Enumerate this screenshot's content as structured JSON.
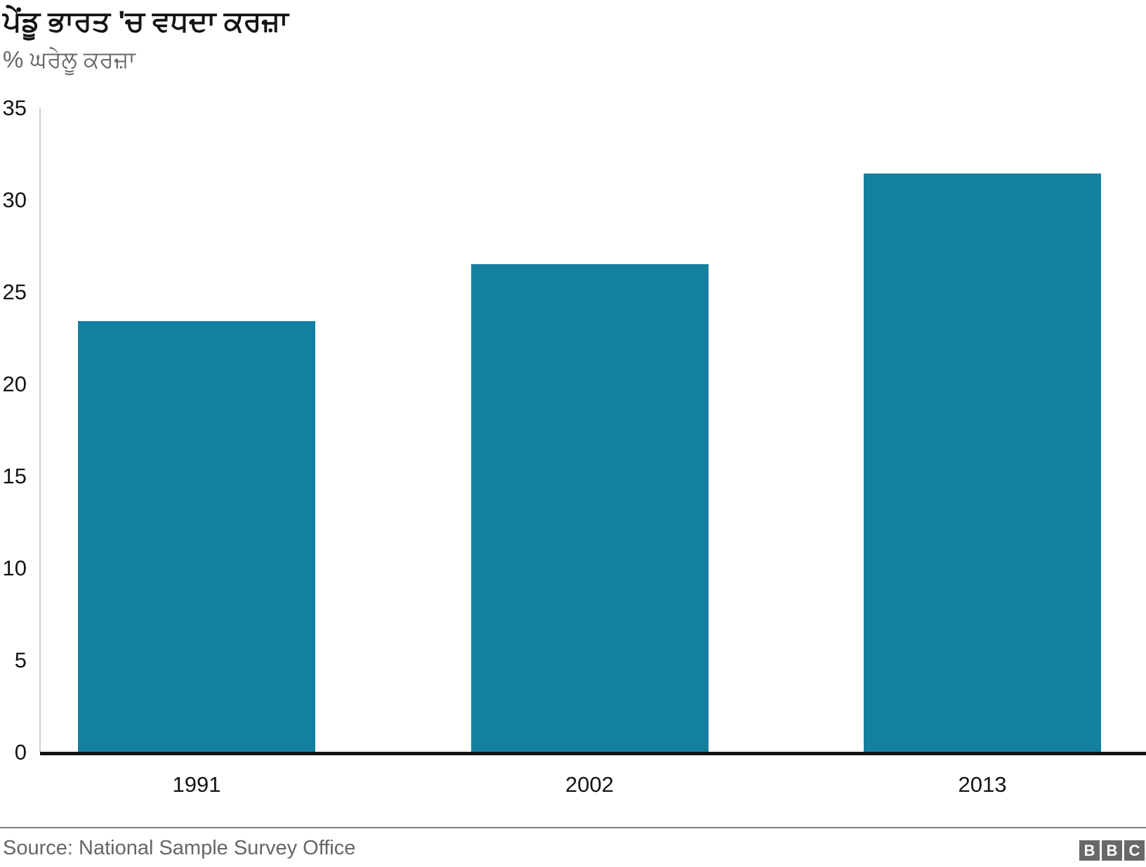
{
  "header": {
    "title": "ਪੇਂਡੂ ਭਾਰਤ 'ਚ ਵਧਦਾ ਕਰਜ਼ਾ",
    "subtitle": "% ਘਰੇਲੂ ਕਰਜ਼ਾ"
  },
  "footer": {
    "source": "Source: National Sample Survey Office",
    "logo_letters": [
      "B",
      "B",
      "C"
    ]
  },
  "colors": {
    "bar": "#1380A1",
    "axis_text": "#141414",
    "axis_line": "#141414",
    "y_axis_line": "#cccccc",
    "muted_text": "#666666",
    "divider": "#808080",
    "logo_bg": "#696969"
  },
  "chart_data": {
    "type": "bar",
    "title": "ਪੇਂਡੂ ਭਾਰਤ 'ਚ ਵਧਦਾ ਕਰਜ਼ਾ",
    "subtitle": "% ਘਰੇਲੂ ਕਰਜ਼ਾ",
    "categories": [
      "1991",
      "2002",
      "2013"
    ],
    "values": [
      23.4,
      26.5,
      31.4
    ],
    "xlabel": "",
    "ylabel": "% ਘਰੇਲੂ ਕਰਜ਼ਾ",
    "ylim": [
      0,
      35
    ],
    "yticks": [
      0,
      5,
      10,
      15,
      20,
      25,
      30,
      35
    ],
    "grid": false,
    "legend": "none",
    "bar_color": "#1380A1"
  }
}
